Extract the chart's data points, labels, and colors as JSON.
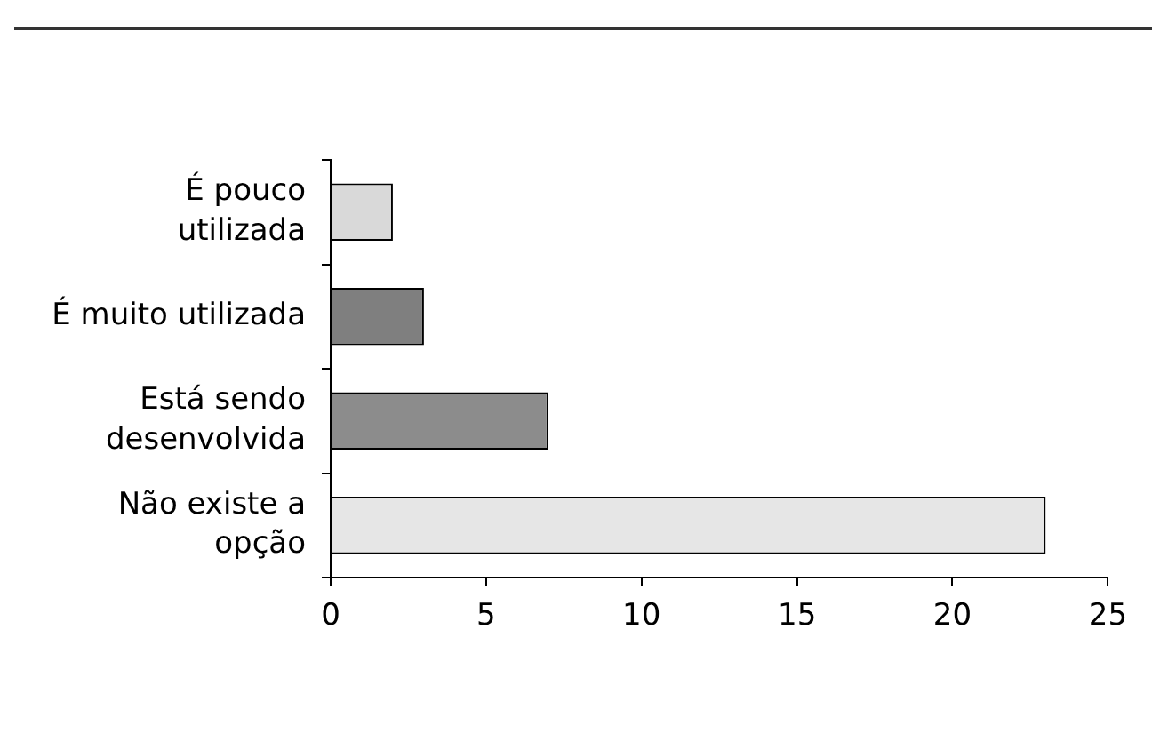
{
  "chart_data": {
    "type": "bar",
    "orientation": "horizontal",
    "categories": [
      "É pouco utilizada",
      "É muito utilizada",
      "Está sendo desenvolvida",
      "Não existe a opção"
    ],
    "values": [
      2,
      3,
      7,
      23
    ],
    "colors": [
      "#d9d9d9",
      "#7f7f7f",
      "#8c8c8c",
      "#e6e6e6"
    ],
    "xlim": [
      0,
      25
    ],
    "xticks": [
      0,
      5,
      10,
      15,
      20,
      25
    ],
    "grid": false,
    "legend": false
  }
}
